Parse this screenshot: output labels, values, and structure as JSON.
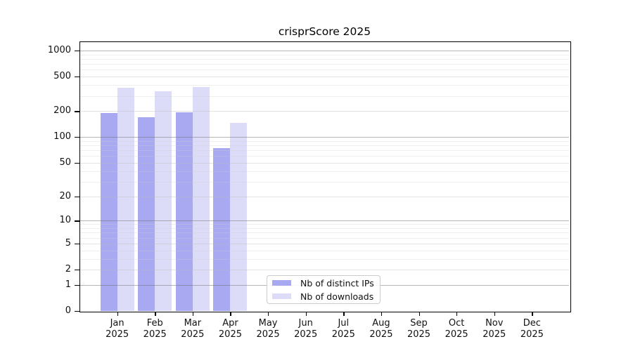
{
  "figure": {
    "background": "#ffffff",
    "axis_color": "#000000"
  },
  "chart_data": {
    "type": "bar",
    "title": "crisprScore 2025",
    "x_categories": [
      "Jan",
      "Feb",
      "Mar",
      "Apr",
      "May",
      "Jun",
      "Jul",
      "Aug",
      "Sep",
      "Oct",
      "Nov",
      "Dec"
    ],
    "x_year_label": "2025",
    "series": [
      {
        "name": "Nb of distinct IPs",
        "color": "#a9a9f2",
        "values": [
          190,
          171,
          192,
          74,
          0,
          0,
          0,
          0,
          0,
          0,
          0,
          0
        ]
      },
      {
        "name": "Nb of downloads",
        "color": "#dcdcf9",
        "values": [
          370,
          340,
          377,
          145,
          0,
          0,
          0,
          0,
          0,
          0,
          0,
          0
        ]
      }
    ],
    "y_ticks": [
      0,
      1,
      2,
      5,
      10,
      20,
      50,
      100,
      200,
      500,
      1000
    ],
    "y_scale": "log1p",
    "ylim": [
      0,
      1300
    ],
    "grid": "horizontal",
    "grid_major_color": "#b0b0b0",
    "grid_minor_color": "#eeeeee",
    "legend_position": "bottom-center"
  }
}
